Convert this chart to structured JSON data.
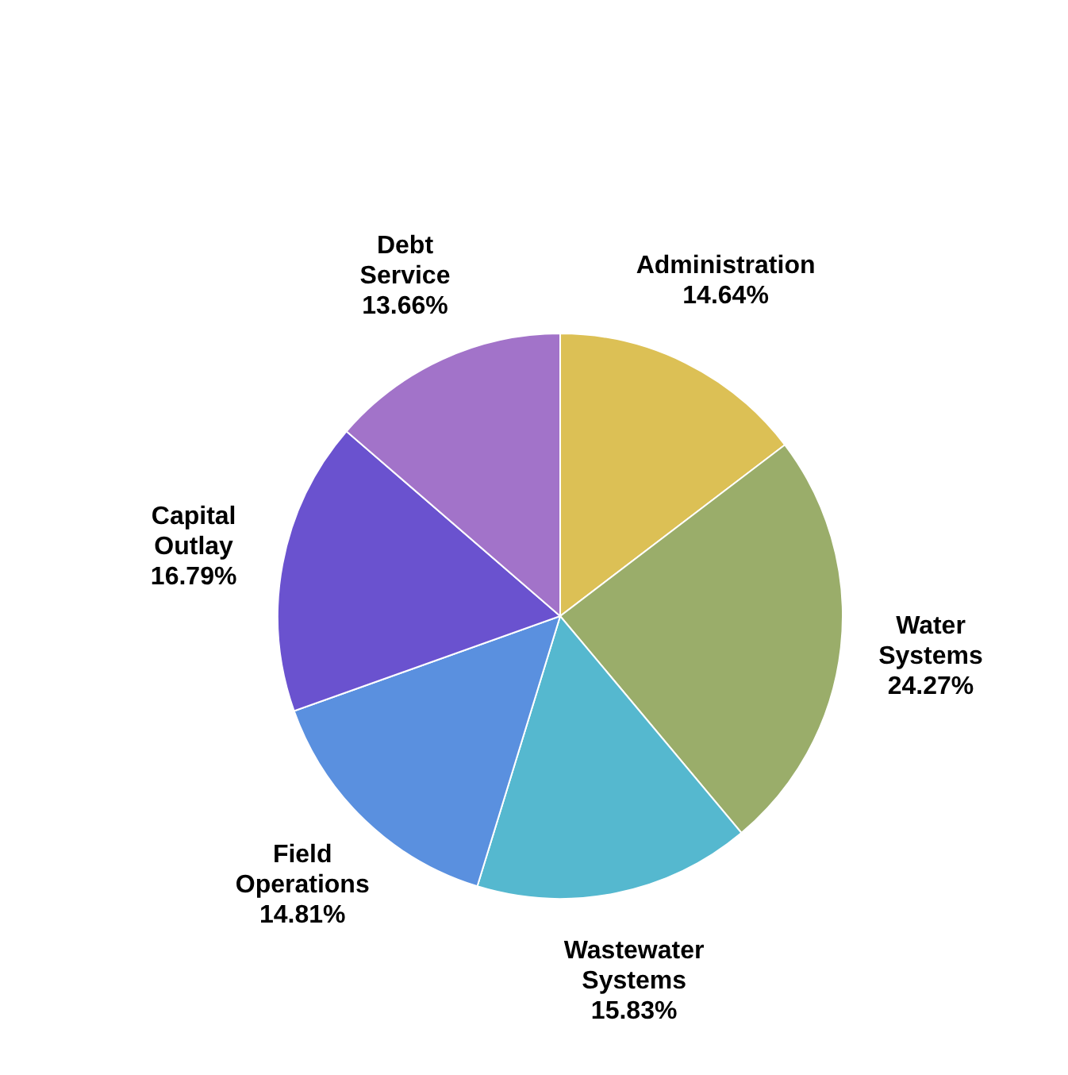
{
  "chart_data": {
    "type": "pie",
    "categories": [
      "Administration",
      "Water Systems",
      "Wastewater Systems",
      "Field Operations",
      "Capital Outlay",
      "Debt Service"
    ],
    "values": [
      14.64,
      24.27,
      15.83,
      14.81,
      16.79,
      13.66
    ],
    "value_labels": [
      "14.64%",
      "24.27%",
      "15.83%",
      "14.81%",
      "16.79%",
      "13.66%"
    ],
    "colors": [
      "#dcc055",
      "#9aad6a",
      "#55b8cf",
      "#5a90df",
      "#6a52cf",
      "#a273c9"
    ]
  }
}
